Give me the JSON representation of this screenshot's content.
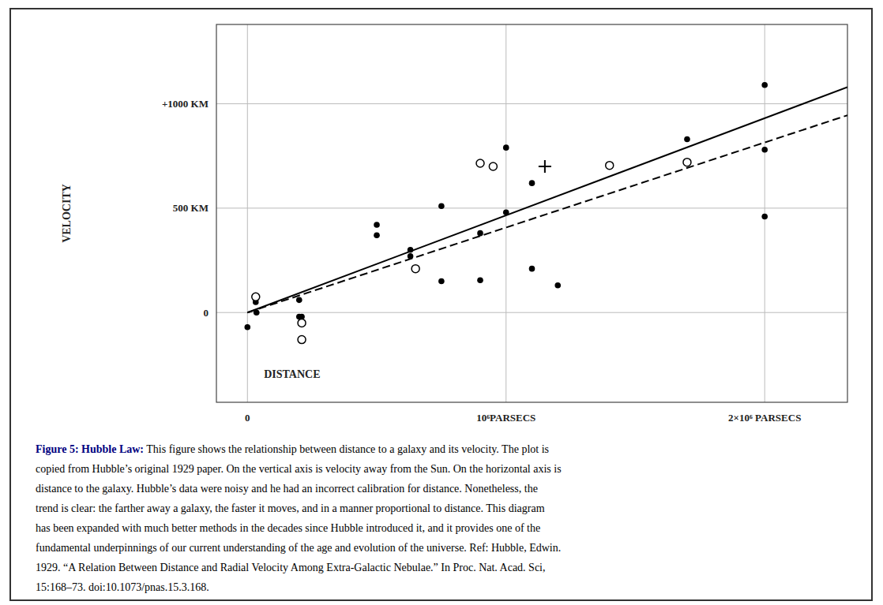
{
  "chart_data": {
    "type": "scatter",
    "xlabel": "DISTANCE",
    "ylabel": "VELOCITY",
    "xlim": [
      -120000,
      2320000
    ],
    "ylim": [
      -430,
      1380
    ],
    "xticks": [
      0,
      {
        "value": 1000000,
        "label": "10⁶PARSECS"
      },
      {
        "value": 2000000,
        "label": "2×10⁶ PARSECS"
      }
    ],
    "yticks": [
      {
        "value": 1000,
        "label": "+1000 KM"
      },
      {
        "value": 500,
        "label": "500 KM"
      },
      0
    ],
    "grid": true,
    "series": [
      {
        "type": "line",
        "line_style": "solid",
        "color": "#000000",
        "x": [
          0.0,
          2320000
        ],
        "values": [
          0.0,
          1080
        ]
      },
      {
        "type": "line",
        "line_style": "dashed",
        "color": "#000000",
        "x": [
          0.0,
          2320000
        ],
        "values": [
          0.0,
          945
        ]
      },
      {
        "type": "scatter",
        "marker": "circle",
        "color": "#000000",
        "x": [
          0.0,
          32000,
          35000,
          200000,
          200000,
          210000,
          500000,
          500000,
          630000,
          630000,
          750000,
          750000,
          900000,
          900000,
          1000000,
          1000000,
          1100000,
          1100000,
          1200000,
          1700000,
          2000000,
          2000000,
          2000000
        ],
        "values": [
          -70,
          50,
          0,
          60,
          -20,
          -20,
          420,
          370,
          300,
          270,
          510,
          150,
          155,
          380,
          480,
          790,
          620,
          210,
          130,
          830,
          1090,
          780,
          460
        ]
      },
      {
        "type": "scatter",
        "marker": "open-circle",
        "color": "#000000",
        "x": [
          32000,
          210000,
          210000,
          650000,
          900000,
          950000,
          1400000,
          1700000
        ],
        "values": [
          75,
          -50,
          -130,
          210,
          715,
          700,
          705,
          720
        ]
      },
      {
        "type": "scatter",
        "marker": "plus",
        "color": "#000000",
        "x": [
          1150000
        ],
        "values": [
          700
        ]
      }
    ],
    "caption": {
      "bold": "Figure 5: Hubble Law:",
      "color": "#000080",
      "lines": [
        "Figure 5: Hubble Law: This figure shows the relationship between distance to a galaxy and its velocity. The plot is",
        "copied from Hubble’s original 1929 paper. On the vertical axis is velocity away from the Sun. On the horizontal axis is",
        "distance to the galaxy. Hubble’s data were noisy and he had an incorrect calibration for distance. Nonetheless, the",
        "trend is clear: the farther away a galaxy, the faster it moves, and in a manner proportional to distance. This diagram",
        "has been expanded with much better methods in the decades since Hubble introduced it, and it provides one of the",
        "fundamental underpinnings of our current understanding of the age and evolution of the universe. Ref: Hubble, Edwin.",
        "1929. “A Relation Between Distance and Radial Velocity Among Extra-Galactic Nebulae.” In Proc. Nat. Acad. Sci,",
        "15:168–73. doi:10.1073/pnas.15.3.168."
      ]
    }
  }
}
